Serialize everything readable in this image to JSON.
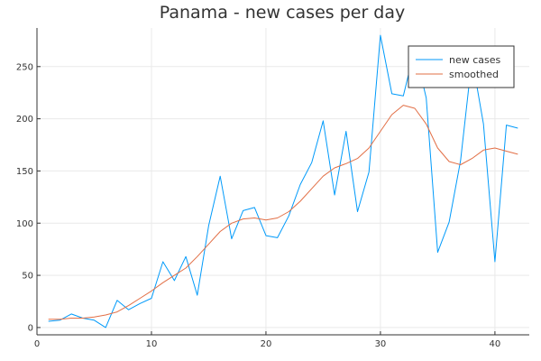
{
  "chart_data": {
    "type": "line",
    "title": "Panama - new cases per day",
    "xlabel": "",
    "ylabel": "",
    "xlim": [
      0,
      43
    ],
    "ylim": [
      -7,
      287
    ],
    "xticks": [
      0,
      10,
      20,
      30,
      40
    ],
    "yticks": [
      0,
      50,
      100,
      150,
      200,
      250
    ],
    "grid": true,
    "legend_position": "top-right",
    "series": [
      {
        "name": "new cases",
        "color": "#009AFA",
        "x": [
          1,
          2,
          3,
          4,
          5,
          6,
          7,
          8,
          9,
          10,
          11,
          12,
          13,
          14,
          15,
          16,
          17,
          18,
          19,
          20,
          21,
          22,
          23,
          24,
          25,
          26,
          27,
          28,
          29,
          30,
          31,
          32,
          33,
          34,
          35,
          36,
          37,
          38,
          39,
          40,
          41,
          42
        ],
        "y": [
          6,
          7,
          13,
          9,
          7,
          0,
          26,
          17,
          23,
          28,
          63,
          45,
          68,
          31,
          98,
          145,
          85,
          112,
          115,
          88,
          86,
          107,
          137,
          158,
          198,
          127,
          188,
          111,
          149,
          280,
          224,
          222,
          267,
          220,
          72,
          101,
          160,
          258,
          195,
          63,
          194,
          191
        ]
      },
      {
        "name": "smoothed",
        "color": "#E26F46",
        "x": [
          1,
          2,
          3,
          4,
          5,
          6,
          7,
          8,
          9,
          10,
          11,
          12,
          13,
          14,
          15,
          16,
          17,
          18,
          19,
          20,
          21,
          22,
          23,
          24,
          25,
          26,
          27,
          28,
          29,
          30,
          31,
          32,
          33,
          34,
          35,
          36,
          37,
          38,
          39,
          40,
          41,
          42
        ],
        "y": [
          8,
          8,
          9,
          9,
          10,
          12,
          15,
          21,
          28,
          35,
          43,
          50,
          57,
          68,
          80,
          92,
          100,
          104,
          105,
          103,
          105,
          111,
          121,
          133,
          145,
          153,
          157,
          162,
          172,
          188,
          204,
          213,
          210,
          195,
          172,
          159,
          156,
          162,
          170,
          172,
          169,
          166
        ]
      }
    ]
  }
}
